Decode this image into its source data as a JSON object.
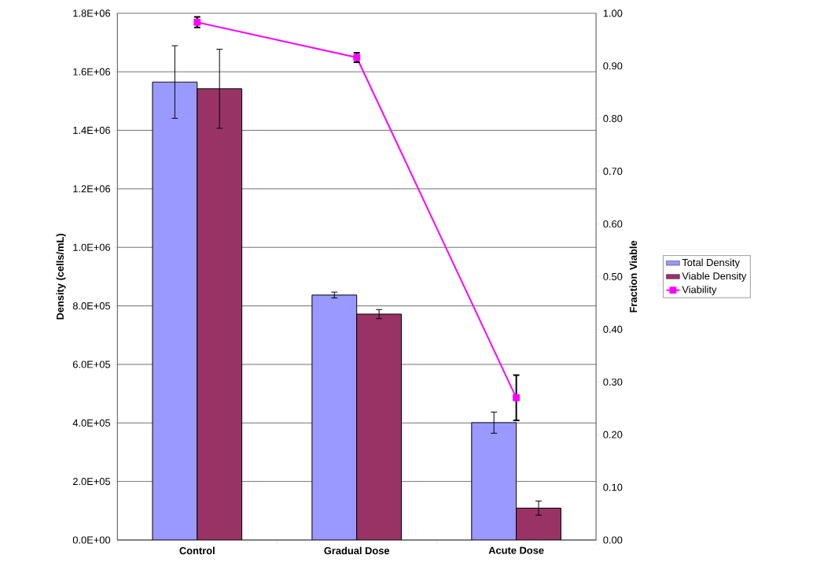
{
  "chart_data": {
    "type": "bar",
    "categories": [
      "Control",
      "Gradual Dose",
      "Acute Dose"
    ],
    "ylabel": "Density (cells/mL)",
    "y2label": "Fraction Viable",
    "ylim": [
      0,
      1800000
    ],
    "yticks": [
      {
        "value": 0,
        "label": "0.0E+00"
      },
      {
        "value": 200000,
        "label": "2.0E+05"
      },
      {
        "value": 400000,
        "label": "4.0E+05"
      },
      {
        "value": 600000,
        "label": "6.0E+05"
      },
      {
        "value": 800000,
        "label": "8.0E+05"
      },
      {
        "value": 1000000,
        "label": "1.0E+06"
      },
      {
        "value": 1200000,
        "label": "1.2E+06"
      },
      {
        "value": 1400000,
        "label": "1.4E+06"
      },
      {
        "value": 1600000,
        "label": "1.6E+06"
      },
      {
        "value": 1800000,
        "label": "1.8E+06"
      }
    ],
    "y2lim": [
      0,
      1
    ],
    "y2ticks": [
      {
        "value": 0,
        "label": "0.00"
      },
      {
        "value": 0.1,
        "label": "0.10"
      },
      {
        "value": 0.2,
        "label": "0.20"
      },
      {
        "value": 0.3,
        "label": "0.30"
      },
      {
        "value": 0.4,
        "label": "0.40"
      },
      {
        "value": 0.5,
        "label": "0.50"
      },
      {
        "value": 0.6,
        "label": "0.60"
      },
      {
        "value": 0.7,
        "label": "0.70"
      },
      {
        "value": 0.8,
        "label": "0.80"
      },
      {
        "value": 0.9,
        "label": "0.90"
      },
      {
        "value": 1,
        "label": "1.00"
      }
    ],
    "grid": "y",
    "legend": "right",
    "series": [
      {
        "name": "Total Density",
        "color": "#9999ff",
        "values": [
          1565000,
          837000,
          401000
        ],
        "errors": [
          124000,
          10000,
          36000
        ]
      },
      {
        "name": "Viable Density",
        "color": "#993366",
        "values": [
          1542000,
          772000,
          109000
        ],
        "errors": [
          135000,
          15500,
          24000
        ]
      },
      {
        "name": "Viability",
        "type": "line",
        "axis": "y2",
        "color": "#ff00ff",
        "marker": "square",
        "values": [
          0.983,
          0.916,
          0.27
        ],
        "errors": [
          0.01,
          0.009,
          0.043
        ]
      }
    ]
  }
}
